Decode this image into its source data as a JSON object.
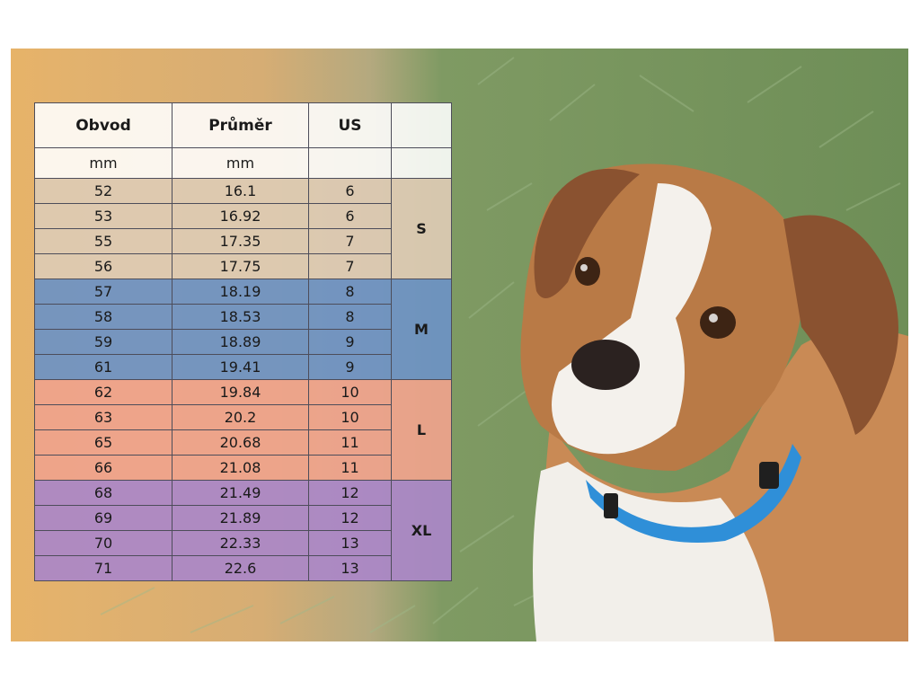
{
  "table": {
    "headers": [
      "Obvod",
      "Průměr",
      "US",
      ""
    ],
    "units": [
      "mm",
      "mm",
      "",
      ""
    ],
    "groups": [
      {
        "size": "S",
        "rows": [
          [
            "52",
            "16.1",
            "6"
          ],
          [
            "53",
            "16.92",
            "6"
          ],
          [
            "55",
            "17.35",
            "7"
          ],
          [
            "56",
            "17.75",
            "7"
          ]
        ],
        "color": "#dccbb4"
      },
      {
        "size": "M",
        "rows": [
          [
            "57",
            "18.19",
            "8"
          ],
          [
            "58",
            "18.53",
            "8"
          ],
          [
            "59",
            "18.89",
            "9"
          ],
          [
            "61",
            "19.41",
            "9"
          ]
        ],
        "color": "#6c92c4"
      },
      {
        "size": "L",
        "rows": [
          [
            "62",
            "19.84",
            "10"
          ],
          [
            "63",
            "20.2",
            "10"
          ],
          [
            "65",
            "20.68",
            "11"
          ],
          [
            "66",
            "21.08",
            "11"
          ]
        ],
        "color": "#efa38c"
      },
      {
        "size": "XL",
        "rows": [
          [
            "68",
            "21.49",
            "12"
          ],
          [
            "69",
            "21.89",
            "12"
          ],
          [
            "70",
            "22.33",
            "13"
          ],
          [
            "71",
            "22.6",
            "13"
          ]
        ],
        "color": "#aa87c8"
      }
    ]
  },
  "photo": {
    "subject": "dog-illustration",
    "collar_color": "#2f8fd8"
  }
}
